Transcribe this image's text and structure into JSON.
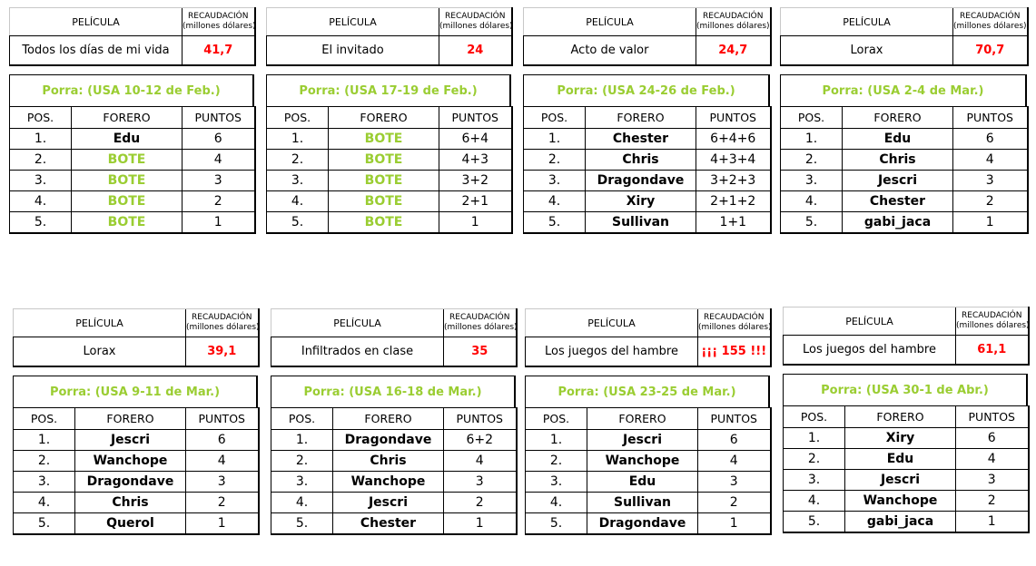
{
  "labels": {
    "pelicula": "PELÍCULA",
    "recaudacion_1": "RECAUDACIÓN",
    "recaudacion_2": "(millones dólares)",
    "pos": "POS.",
    "forero": "FORERO",
    "puntos": "PUNTOS"
  },
  "colors": {
    "amount": "#ff0000",
    "porra": "#9acd32",
    "bote": "#9acd32"
  },
  "cards": [
    {
      "film": "Todos los días de mi vida",
      "amount": "41,7",
      "porra": "Porra: (USA 10-12 de Feb.)",
      "rows": [
        {
          "pos": "1.",
          "forero": "Edu",
          "puntos": "6",
          "bote": false
        },
        {
          "pos": "2.",
          "forero": "BOTE",
          "puntos": "4",
          "bote": true
        },
        {
          "pos": "3.",
          "forero": "BOTE",
          "puntos": "3",
          "bote": true
        },
        {
          "pos": "4.",
          "forero": "BOTE",
          "puntos": "2",
          "bote": true
        },
        {
          "pos": "5.",
          "forero": "BOTE",
          "puntos": "1",
          "bote": true
        }
      ]
    },
    {
      "film": "El invitado",
      "amount": "24",
      "porra": "Porra: (USA 17-19 de Feb.)",
      "rows": [
        {
          "pos": "1.",
          "forero": "BOTE",
          "puntos": "6+4",
          "bote": true
        },
        {
          "pos": "2.",
          "forero": "BOTE",
          "puntos": "4+3",
          "bote": true
        },
        {
          "pos": "3.",
          "forero": "BOTE",
          "puntos": "3+2",
          "bote": true
        },
        {
          "pos": "4.",
          "forero": "BOTE",
          "puntos": "2+1",
          "bote": true
        },
        {
          "pos": "5.",
          "forero": "BOTE",
          "puntos": "1",
          "bote": true
        }
      ]
    },
    {
      "film": "Acto de valor",
      "amount": "24,7",
      "porra": "Porra: (USA 24-26 de Feb.)",
      "rows": [
        {
          "pos": "1.",
          "forero": "Chester",
          "puntos": "6+4+6",
          "bote": false
        },
        {
          "pos": "2.",
          "forero": "Chris",
          "puntos": "4+3+4",
          "bote": false
        },
        {
          "pos": "3.",
          "forero": "Dragondave",
          "puntos": "3+2+3",
          "bote": false
        },
        {
          "pos": "4.",
          "forero": "Xiry",
          "puntos": "2+1+2",
          "bote": false
        },
        {
          "pos": "5.",
          "forero": "Sullivan",
          "puntos": "1+1",
          "bote": false
        }
      ]
    },
    {
      "film": "Lorax",
      "amount": "70,7",
      "porra": "Porra: (USA 2-4 de Mar.)",
      "rows": [
        {
          "pos": "1.",
          "forero": "Edu",
          "puntos": "6",
          "bote": false
        },
        {
          "pos": "2.",
          "forero": "Chris",
          "puntos": "4",
          "bote": false
        },
        {
          "pos": "3.",
          "forero": "Jescri",
          "puntos": "3",
          "bote": false
        },
        {
          "pos": "4.",
          "forero": "Chester",
          "puntos": "2",
          "bote": false
        },
        {
          "pos": "5.",
          "forero": "gabi_jaca",
          "puntos": "1",
          "bote": false
        }
      ]
    },
    {
      "film": "Lorax",
      "amount": "39,1",
      "porra": "Porra: (USA 9-11 de Mar.)",
      "rows": [
        {
          "pos": "1.",
          "forero": "Jescri",
          "puntos": "6",
          "bote": false
        },
        {
          "pos": "2.",
          "forero": "Wanchope",
          "puntos": "4",
          "bote": false
        },
        {
          "pos": "3.",
          "forero": "Dragondave",
          "puntos": "3",
          "bote": false
        },
        {
          "pos": "4.",
          "forero": "Chris",
          "puntos": "2",
          "bote": false
        },
        {
          "pos": "5.",
          "forero": "Querol",
          "puntos": "1",
          "bote": false
        }
      ]
    },
    {
      "film": "Infiltrados en clase",
      "amount": "35",
      "porra": "Porra: (USA 16-18 de Mar.)",
      "rows": [
        {
          "pos": "1.",
          "forero": "Dragondave",
          "puntos": "6+2",
          "bote": false
        },
        {
          "pos": "2.",
          "forero": "Chris",
          "puntos": "4",
          "bote": false
        },
        {
          "pos": "3.",
          "forero": "Wanchope",
          "puntos": "3",
          "bote": false
        },
        {
          "pos": "4.",
          "forero": "Jescri",
          "puntos": "2",
          "bote": false
        },
        {
          "pos": "5.",
          "forero": "Chester",
          "puntos": "1",
          "bote": false
        }
      ]
    },
    {
      "film": "Los juegos del hambre",
      "amount": "¡¡¡ 155 !!!",
      "porra": "Porra: (USA 23-25 de Mar.)",
      "rows": [
        {
          "pos": "1.",
          "forero": "Jescri",
          "puntos": "6",
          "bote": false
        },
        {
          "pos": "2.",
          "forero": "Wanchope",
          "puntos": "4",
          "bote": false
        },
        {
          "pos": "3.",
          "forero": "Edu",
          "puntos": "3",
          "bote": false
        },
        {
          "pos": "4.",
          "forero": "Sullivan",
          "puntos": "2",
          "bote": false
        },
        {
          "pos": "5.",
          "forero": "Dragondave",
          "puntos": "1",
          "bote": false
        }
      ]
    },
    {
      "film": "Los juegos del hambre",
      "amount": "61,1",
      "porra": "Porra: (USA 30-1 de Abr.)",
      "rows": [
        {
          "pos": "1.",
          "forero": "Xiry",
          "puntos": "6",
          "bote": false
        },
        {
          "pos": "2.",
          "forero": "Edu",
          "puntos": "4",
          "bote": false
        },
        {
          "pos": "3.",
          "forero": "Jescri",
          "puntos": "3",
          "bote": false
        },
        {
          "pos": "4.",
          "forero": "Wanchope",
          "puntos": "2",
          "bote": false
        },
        {
          "pos": "5.",
          "forero": "gabi_jaca",
          "puntos": "1",
          "bote": false
        }
      ]
    }
  ]
}
